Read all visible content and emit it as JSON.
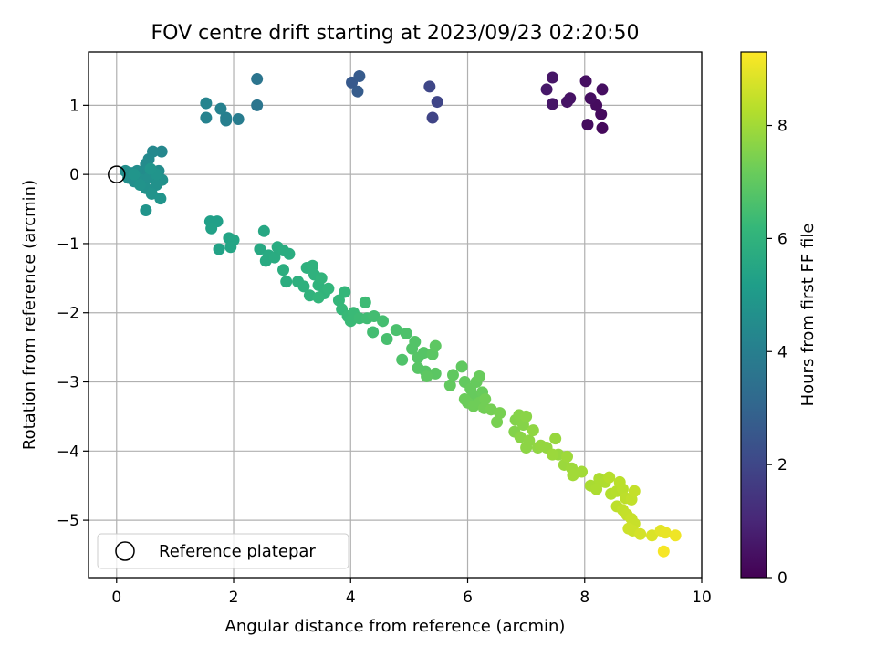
{
  "chart_data": {
    "type": "scatter",
    "title": "FOV centre drift starting at 2023/09/23 02:20:50",
    "xlabel": "Angular distance from reference (arcmin)",
    "ylabel": "Rotation from reference (arcmin)",
    "xlim": [
      -0.48,
      10.0
    ],
    "ylim": [
      -5.83,
      1.77
    ],
    "xticks": [
      0,
      2,
      4,
      6,
      8,
      10
    ],
    "xtick_labels": [
      "0",
      "2",
      "4",
      "6",
      "8",
      "10"
    ],
    "yticks": [
      1,
      0,
      -1,
      -2,
      -3,
      -4,
      -5
    ],
    "ytick_labels": [
      "1",
      "0",
      "−1",
      "−2",
      "−3",
      "−4",
      "−5"
    ],
    "grid": true,
    "legend": {
      "placement": "lower-left",
      "entries": [
        "Reference platepar"
      ]
    },
    "reference_point": {
      "x": 0,
      "y": 0
    },
    "colorbar": {
      "label": "Hours from first FF file",
      "colormap": "viridis",
      "range": [
        0,
        9.3
      ],
      "ticks": [
        0,
        2,
        4,
        6,
        8
      ],
      "tick_labels": [
        "0",
        "2",
        "4",
        "6",
        "8"
      ]
    },
    "series": [
      {
        "points": [
          {
            "x": 8.3,
            "y": 0.67,
            "c": 0.2
          },
          {
            "x": 8.28,
            "y": 0.87,
            "c": 0.25
          },
          {
            "x": 8.05,
            "y": 0.72,
            "c": 0.3
          },
          {
            "x": 8.2,
            "y": 1.0,
            "c": 0.3
          },
          {
            "x": 8.3,
            "y": 1.23,
            "c": 0.35
          },
          {
            "x": 8.1,
            "y": 1.1,
            "c": 0.35
          },
          {
            "x": 8.02,
            "y": 1.35,
            "c": 0.4
          },
          {
            "x": 7.75,
            "y": 1.1,
            "c": 0.45
          },
          {
            "x": 7.7,
            "y": 1.05,
            "c": 0.5
          },
          {
            "x": 7.45,
            "y": 1.4,
            "c": 0.55
          },
          {
            "x": 7.45,
            "y": 1.02,
            "c": 0.55
          },
          {
            "x": 7.35,
            "y": 1.23,
            "c": 0.6
          },
          {
            "x": 5.4,
            "y": 0.82,
            "c": 1.9
          },
          {
            "x": 5.48,
            "y": 1.05,
            "c": 1.95
          },
          {
            "x": 5.35,
            "y": 1.27,
            "c": 2.0
          },
          {
            "x": 4.02,
            "y": 1.33,
            "c": 2.6
          },
          {
            "x": 4.15,
            "y": 1.42,
            "c": 2.65
          },
          {
            "x": 4.12,
            "y": 1.2,
            "c": 2.7
          },
          {
            "x": 2.4,
            "y": 1.0,
            "c": 3.6
          },
          {
            "x": 2.4,
            "y": 1.38,
            "c": 3.6
          },
          {
            "x": 2.08,
            "y": 0.8,
            "c": 3.9
          },
          {
            "x": 1.87,
            "y": 0.82,
            "c": 4.0
          },
          {
            "x": 1.87,
            "y": 0.78,
            "c": 4.0
          },
          {
            "x": 1.78,
            "y": 0.95,
            "c": 4.1
          },
          {
            "x": 1.53,
            "y": 0.82,
            "c": 4.15
          },
          {
            "x": 1.53,
            "y": 1.03,
            "c": 4.2
          },
          {
            "x": 0.77,
            "y": 0.33,
            "c": 4.3
          },
          {
            "x": 0.62,
            "y": 0.33,
            "c": 4.35
          },
          {
            "x": 0.55,
            "y": 0.22,
            "c": 4.4
          },
          {
            "x": 0.5,
            "y": 0.15,
            "c": 4.45
          },
          {
            "x": 0.72,
            "y": 0.05,
            "c": 4.5
          },
          {
            "x": 0.48,
            "y": 0.03,
            "c": 4.5
          },
          {
            "x": 0.35,
            "y": 0.05,
            "c": 4.55
          },
          {
            "x": 0.25,
            "y": 0.02,
            "c": 4.55
          },
          {
            "x": 0.15,
            "y": 0.05,
            "c": 4.6
          },
          {
            "x": 0.2,
            "y": -0.05,
            "c": 4.6
          },
          {
            "x": 0.3,
            "y": -0.1,
            "c": 4.6
          },
          {
            "x": 0.42,
            "y": -0.08,
            "c": 4.65
          },
          {
            "x": 0.55,
            "y": -0.05,
            "c": 4.65
          },
          {
            "x": 0.78,
            "y": -0.08,
            "c": 4.7
          },
          {
            "x": 0.68,
            "y": -0.15,
            "c": 4.7
          },
          {
            "x": 0.5,
            "y": -0.2,
            "c": 4.7
          },
          {
            "x": 0.4,
            "y": -0.15,
            "c": 4.75
          },
          {
            "x": 0.6,
            "y": -0.28,
            "c": 4.75
          },
          {
            "x": 0.75,
            "y": -0.35,
            "c": 4.8
          },
          {
            "x": 0.5,
            "y": -0.52,
            "c": 4.8
          },
          {
            "x": 0.68,
            "y": 0.0,
            "c": 4.8
          },
          {
            "x": 0.3,
            "y": 0.0,
            "c": 4.85
          },
          {
            "x": 0.58,
            "y": 0.08,
            "c": 4.85
          },
          {
            "x": 1.6,
            "y": -0.68,
            "c": 5.25
          },
          {
            "x": 1.72,
            "y": -0.68,
            "c": 5.25
          },
          {
            "x": 1.62,
            "y": -0.78,
            "c": 5.3
          },
          {
            "x": 1.75,
            "y": -1.08,
            "c": 5.35
          },
          {
            "x": 1.92,
            "y": -0.92,
            "c": 5.4
          },
          {
            "x": 2.0,
            "y": -0.95,
            "c": 5.45
          },
          {
            "x": 1.95,
            "y": -1.05,
            "c": 5.45
          },
          {
            "x": 2.52,
            "y": -0.82,
            "c": 5.55
          },
          {
            "x": 2.45,
            "y": -1.08,
            "c": 5.6
          },
          {
            "x": 2.6,
            "y": -1.17,
            "c": 5.65
          },
          {
            "x": 2.55,
            "y": -1.25,
            "c": 5.65
          },
          {
            "x": 2.7,
            "y": -1.2,
            "c": 5.7
          },
          {
            "x": 2.75,
            "y": -1.05,
            "c": 5.7
          },
          {
            "x": 2.85,
            "y": -1.1,
            "c": 5.75
          },
          {
            "x": 2.95,
            "y": -1.15,
            "c": 5.75
          },
          {
            "x": 2.85,
            "y": -1.38,
            "c": 5.8
          },
          {
            "x": 2.9,
            "y": -1.55,
            "c": 5.8
          },
          {
            "x": 3.1,
            "y": -1.55,
            "c": 5.85
          },
          {
            "x": 3.2,
            "y": -1.62,
            "c": 5.9
          },
          {
            "x": 3.25,
            "y": -1.35,
            "c": 5.9
          },
          {
            "x": 3.35,
            "y": -1.32,
            "c": 5.95
          },
          {
            "x": 3.38,
            "y": -1.45,
            "c": 5.95
          },
          {
            "x": 3.3,
            "y": -1.75,
            "c": 6.0
          },
          {
            "x": 3.45,
            "y": -1.6,
            "c": 6.0
          },
          {
            "x": 3.5,
            "y": -1.5,
            "c": 6.05
          },
          {
            "x": 3.55,
            "y": -1.72,
            "c": 6.05
          },
          {
            "x": 3.45,
            "y": -1.78,
            "c": 6.1
          },
          {
            "x": 3.62,
            "y": -1.65,
            "c": 6.1
          },
          {
            "x": 3.8,
            "y": -1.82,
            "c": 6.15
          },
          {
            "x": 3.9,
            "y": -1.7,
            "c": 6.15
          },
          {
            "x": 3.85,
            "y": -1.95,
            "c": 6.2
          },
          {
            "x": 3.95,
            "y": -2.05,
            "c": 6.25
          },
          {
            "x": 4.0,
            "y": -2.12,
            "c": 6.3
          },
          {
            "x": 4.05,
            "y": -2.0,
            "c": 6.3
          },
          {
            "x": 4.15,
            "y": -2.08,
            "c": 6.35
          },
          {
            "x": 4.25,
            "y": -1.85,
            "c": 6.35
          },
          {
            "x": 4.28,
            "y": -2.08,
            "c": 6.4
          },
          {
            "x": 4.4,
            "y": -2.05,
            "c": 6.45
          },
          {
            "x": 4.38,
            "y": -2.28,
            "c": 6.45
          },
          {
            "x": 4.55,
            "y": -2.12,
            "c": 6.5
          },
          {
            "x": 4.62,
            "y": -2.38,
            "c": 6.55
          },
          {
            "x": 4.78,
            "y": -2.25,
            "c": 6.6
          },
          {
            "x": 4.95,
            "y": -2.3,
            "c": 6.65
          },
          {
            "x": 4.88,
            "y": -2.68,
            "c": 6.7
          },
          {
            "x": 5.1,
            "y": -2.42,
            "c": 6.75
          },
          {
            "x": 5.05,
            "y": -2.52,
            "c": 6.75
          },
          {
            "x": 5.15,
            "y": -2.65,
            "c": 6.8
          },
          {
            "x": 5.25,
            "y": -2.58,
            "c": 6.8
          },
          {
            "x": 5.15,
            "y": -2.8,
            "c": 6.85
          },
          {
            "x": 5.28,
            "y": -2.85,
            "c": 6.85
          },
          {
            "x": 5.4,
            "y": -2.6,
            "c": 6.9
          },
          {
            "x": 5.45,
            "y": -2.88,
            "c": 6.9
          },
          {
            "x": 5.3,
            "y": -2.92,
            "c": 6.95
          },
          {
            "x": 5.45,
            "y": -2.48,
            "c": 6.95
          },
          {
            "x": 5.9,
            "y": -2.78,
            "c": 7.0
          },
          {
            "x": 5.75,
            "y": -2.9,
            "c": 7.0
          },
          {
            "x": 5.7,
            "y": -3.05,
            "c": 7.05
          },
          {
            "x": 5.95,
            "y": -3.0,
            "c": 7.05
          },
          {
            "x": 6.05,
            "y": -3.1,
            "c": 7.1
          },
          {
            "x": 6.1,
            "y": -3.2,
            "c": 7.1
          },
          {
            "x": 6.15,
            "y": -3.0,
            "c": 7.1
          },
          {
            "x": 6.2,
            "y": -2.92,
            "c": 7.15
          },
          {
            "x": 6.25,
            "y": -3.15,
            "c": 7.15
          },
          {
            "x": 5.95,
            "y": -3.25,
            "c": 7.2
          },
          {
            "x": 6.0,
            "y": -3.3,
            "c": 7.2
          },
          {
            "x": 6.1,
            "y": -3.35,
            "c": 7.25
          },
          {
            "x": 6.2,
            "y": -3.3,
            "c": 7.25
          },
          {
            "x": 6.3,
            "y": -3.25,
            "c": 7.3
          },
          {
            "x": 6.28,
            "y": -3.38,
            "c": 7.3
          },
          {
            "x": 6.4,
            "y": -3.4,
            "c": 7.35
          },
          {
            "x": 6.5,
            "y": -3.58,
            "c": 7.4
          },
          {
            "x": 6.55,
            "y": -3.45,
            "c": 7.4
          },
          {
            "x": 6.8,
            "y": -3.72,
            "c": 7.55
          },
          {
            "x": 6.82,
            "y": -3.55,
            "c": 7.55
          },
          {
            "x": 6.88,
            "y": -3.48,
            "c": 7.6
          },
          {
            "x": 6.95,
            "y": -3.62,
            "c": 7.6
          },
          {
            "x": 7.0,
            "y": -3.5,
            "c": 7.65
          },
          {
            "x": 6.9,
            "y": -3.8,
            "c": 7.65
          },
          {
            "x": 7.0,
            "y": -3.95,
            "c": 7.7
          },
          {
            "x": 7.05,
            "y": -3.85,
            "c": 7.7
          },
          {
            "x": 7.12,
            "y": -3.7,
            "c": 7.75
          },
          {
            "x": 7.2,
            "y": -3.95,
            "c": 7.75
          },
          {
            "x": 7.25,
            "y": -3.92,
            "c": 7.8
          },
          {
            "x": 7.35,
            "y": -3.95,
            "c": 7.8
          },
          {
            "x": 7.5,
            "y": -3.82,
            "c": 7.85
          },
          {
            "x": 7.55,
            "y": -4.05,
            "c": 7.85
          },
          {
            "x": 7.45,
            "y": -4.05,
            "c": 7.9
          },
          {
            "x": 7.65,
            "y": -4.2,
            "c": 7.9
          },
          {
            "x": 7.7,
            "y": -4.08,
            "c": 7.95
          },
          {
            "x": 7.78,
            "y": -4.25,
            "c": 7.95
          },
          {
            "x": 7.8,
            "y": -4.35,
            "c": 8.0
          },
          {
            "x": 7.95,
            "y": -4.3,
            "c": 8.0
          },
          {
            "x": 8.1,
            "y": -4.5,
            "c": 8.1
          },
          {
            "x": 8.25,
            "y": -4.4,
            "c": 8.15
          },
          {
            "x": 8.2,
            "y": -4.55,
            "c": 8.15
          },
          {
            "x": 8.35,
            "y": -4.45,
            "c": 8.2
          },
          {
            "x": 8.45,
            "y": -4.62,
            "c": 8.25
          },
          {
            "x": 8.55,
            "y": -4.58,
            "c": 8.3
          },
          {
            "x": 8.42,
            "y": -4.38,
            "c": 8.3
          },
          {
            "x": 8.6,
            "y": -4.45,
            "c": 8.35
          },
          {
            "x": 8.65,
            "y": -4.55,
            "c": 8.35
          },
          {
            "x": 8.7,
            "y": -4.68,
            "c": 8.4
          },
          {
            "x": 8.55,
            "y": -4.8,
            "c": 8.4
          },
          {
            "x": 8.65,
            "y": -4.85,
            "c": 8.45
          },
          {
            "x": 8.8,
            "y": -4.7,
            "c": 8.45
          },
          {
            "x": 8.85,
            "y": -4.58,
            "c": 8.5
          },
          {
            "x": 8.72,
            "y": -4.92,
            "c": 8.5
          },
          {
            "x": 8.8,
            "y": -4.98,
            "c": 8.55
          },
          {
            "x": 8.85,
            "y": -5.05,
            "c": 8.55
          },
          {
            "x": 8.75,
            "y": -5.12,
            "c": 8.6
          },
          {
            "x": 8.82,
            "y": -5.15,
            "c": 8.6
          },
          {
            "x": 8.95,
            "y": -5.2,
            "c": 8.7
          },
          {
            "x": 9.15,
            "y": -5.22,
            "c": 8.8
          },
          {
            "x": 9.3,
            "y": -5.15,
            "c": 8.9
          },
          {
            "x": 9.38,
            "y": -5.18,
            "c": 9.0
          },
          {
            "x": 9.55,
            "y": -5.22,
            "c": 9.1
          },
          {
            "x": 9.35,
            "y": -5.45,
            "c": 9.2
          }
        ]
      }
    ]
  }
}
